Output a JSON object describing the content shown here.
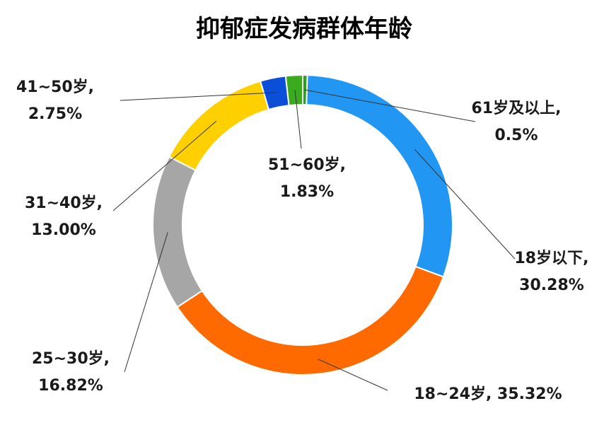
{
  "chart_data": {
    "type": "pie",
    "variant": "donut",
    "title": "抑郁症发病群体年龄",
    "legend": "none",
    "slices": [
      {
        "category": "61岁及以上",
        "value": 0.5,
        "label_line1": "61岁及以上,",
        "label_line2": "0.5%",
        "color": "#2e9e1e"
      },
      {
        "category": "18岁以下",
        "value": 30.28,
        "label_line1": "18岁以下,",
        "label_line2": "30.28%",
        "color": "#2196f3"
      },
      {
        "category": "18~24岁",
        "value": 35.32,
        "label_line1": "18~24岁, 35.32%",
        "label_line2": "",
        "color": "#ff6a00"
      },
      {
        "category": "25~30岁",
        "value": 16.82,
        "label_line1": "25~30岁,",
        "label_line2": "16.82%",
        "color": "#a6a6a6"
      },
      {
        "category": "31~40岁",
        "value": 13.0,
        "label_line1": "31~40岁,",
        "label_line2": "13.00%",
        "color": "#ffd000"
      },
      {
        "category": "41~50岁",
        "value": 2.75,
        "label_line1": "41~50岁,",
        "label_line2": "2.75%",
        "color": "#0b4fd9"
      },
      {
        "category": "51~60岁",
        "value": 1.83,
        "label_line1": "51~60岁,",
        "label_line2": "1.83%",
        "color": "#3aaa1e"
      }
    ]
  }
}
